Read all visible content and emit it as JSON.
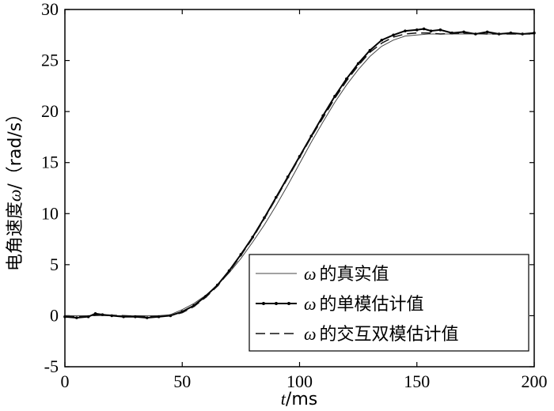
{
  "chart_data": {
    "type": "line",
    "title": "",
    "xlabel_var": "t",
    "xlabel_unit": "/ms",
    "ylabel_main": "电角速度",
    "ylabel_sym": "ω",
    "ylabel_unit": "/（rad/s）",
    "xlim": [
      0,
      200
    ],
    "ylim": [
      -5,
      30
    ],
    "xticks": [
      0,
      50,
      100,
      150,
      200
    ],
    "yticks": [
      -5,
      0,
      5,
      10,
      15,
      20,
      25,
      30
    ],
    "grid": false,
    "legend_position": "bottom-right",
    "series": [
      {
        "name_sym": "ω",
        "name_text": "的真实值",
        "style": "solid-thin",
        "color": "#444444",
        "x": [
          0,
          10,
          20,
          30,
          40,
          45,
          50,
          55,
          60,
          65,
          70,
          75,
          80,
          85,
          90,
          95,
          100,
          105,
          110,
          115,
          120,
          125,
          130,
          135,
          140,
          145,
          150,
          155,
          160,
          170,
          180,
          190,
          200
        ],
        "y": [
          0,
          0,
          0,
          0,
          0,
          0.1,
          0.6,
          1.2,
          2.0,
          3.0,
          4.2,
          5.6,
          7.2,
          8.9,
          10.8,
          12.8,
          14.9,
          17.0,
          19.0,
          20.9,
          22.6,
          24.1,
          25.4,
          26.4,
          27.0,
          27.4,
          27.5,
          27.6,
          27.6,
          27.6,
          27.6,
          27.6,
          27.6
        ]
      },
      {
        "name_sym": "ω",
        "name_text": "的单模估计值",
        "style": "solid-dots",
        "color": "#000000",
        "x": [
          0,
          5,
          10,
          13,
          16,
          20,
          25,
          30,
          35,
          40,
          45,
          50,
          55,
          60,
          65,
          70,
          75,
          80,
          85,
          90,
          95,
          100,
          105,
          110,
          115,
          120,
          125,
          130,
          135,
          140,
          145,
          150,
          153,
          156,
          160,
          165,
          170,
          175,
          180,
          185,
          190,
          195,
          200
        ],
        "y": [
          -0.1,
          -0.2,
          -0.1,
          0.2,
          0.1,
          0.0,
          -0.1,
          -0.1,
          -0.2,
          -0.1,
          0.0,
          0.4,
          1.0,
          1.9,
          3.0,
          4.4,
          6.0,
          7.7,
          9.6,
          11.6,
          13.6,
          15.6,
          17.6,
          19.6,
          21.5,
          23.2,
          24.7,
          26.0,
          27.0,
          27.5,
          27.9,
          28.0,
          28.1,
          27.9,
          28.0,
          27.7,
          27.8,
          27.6,
          27.8,
          27.6,
          27.7,
          27.6,
          27.7
        ]
      },
      {
        "name_sym": "ω",
        "name_text": "的交互双模估计值",
        "style": "dashed",
        "color": "#111111",
        "x": [
          0,
          5,
          10,
          15,
          20,
          25,
          30,
          35,
          40,
          45,
          50,
          55,
          60,
          65,
          70,
          75,
          80,
          85,
          90,
          95,
          100,
          105,
          110,
          115,
          120,
          125,
          130,
          135,
          140,
          145,
          150,
          155,
          160,
          170,
          180,
          190,
          200
        ],
        "y": [
          -0.05,
          -0.1,
          -0.05,
          0.1,
          0.05,
          0,
          -0.05,
          -0.1,
          -0.05,
          0,
          0.3,
          0.9,
          1.8,
          2.9,
          4.3,
          5.9,
          7.6,
          9.5,
          11.5,
          13.5,
          15.5,
          17.5,
          19.4,
          21.3,
          23.0,
          24.5,
          25.8,
          26.7,
          27.3,
          27.6,
          27.7,
          27.7,
          27.6,
          27.7,
          27.6,
          27.6,
          27.6
        ]
      }
    ]
  }
}
